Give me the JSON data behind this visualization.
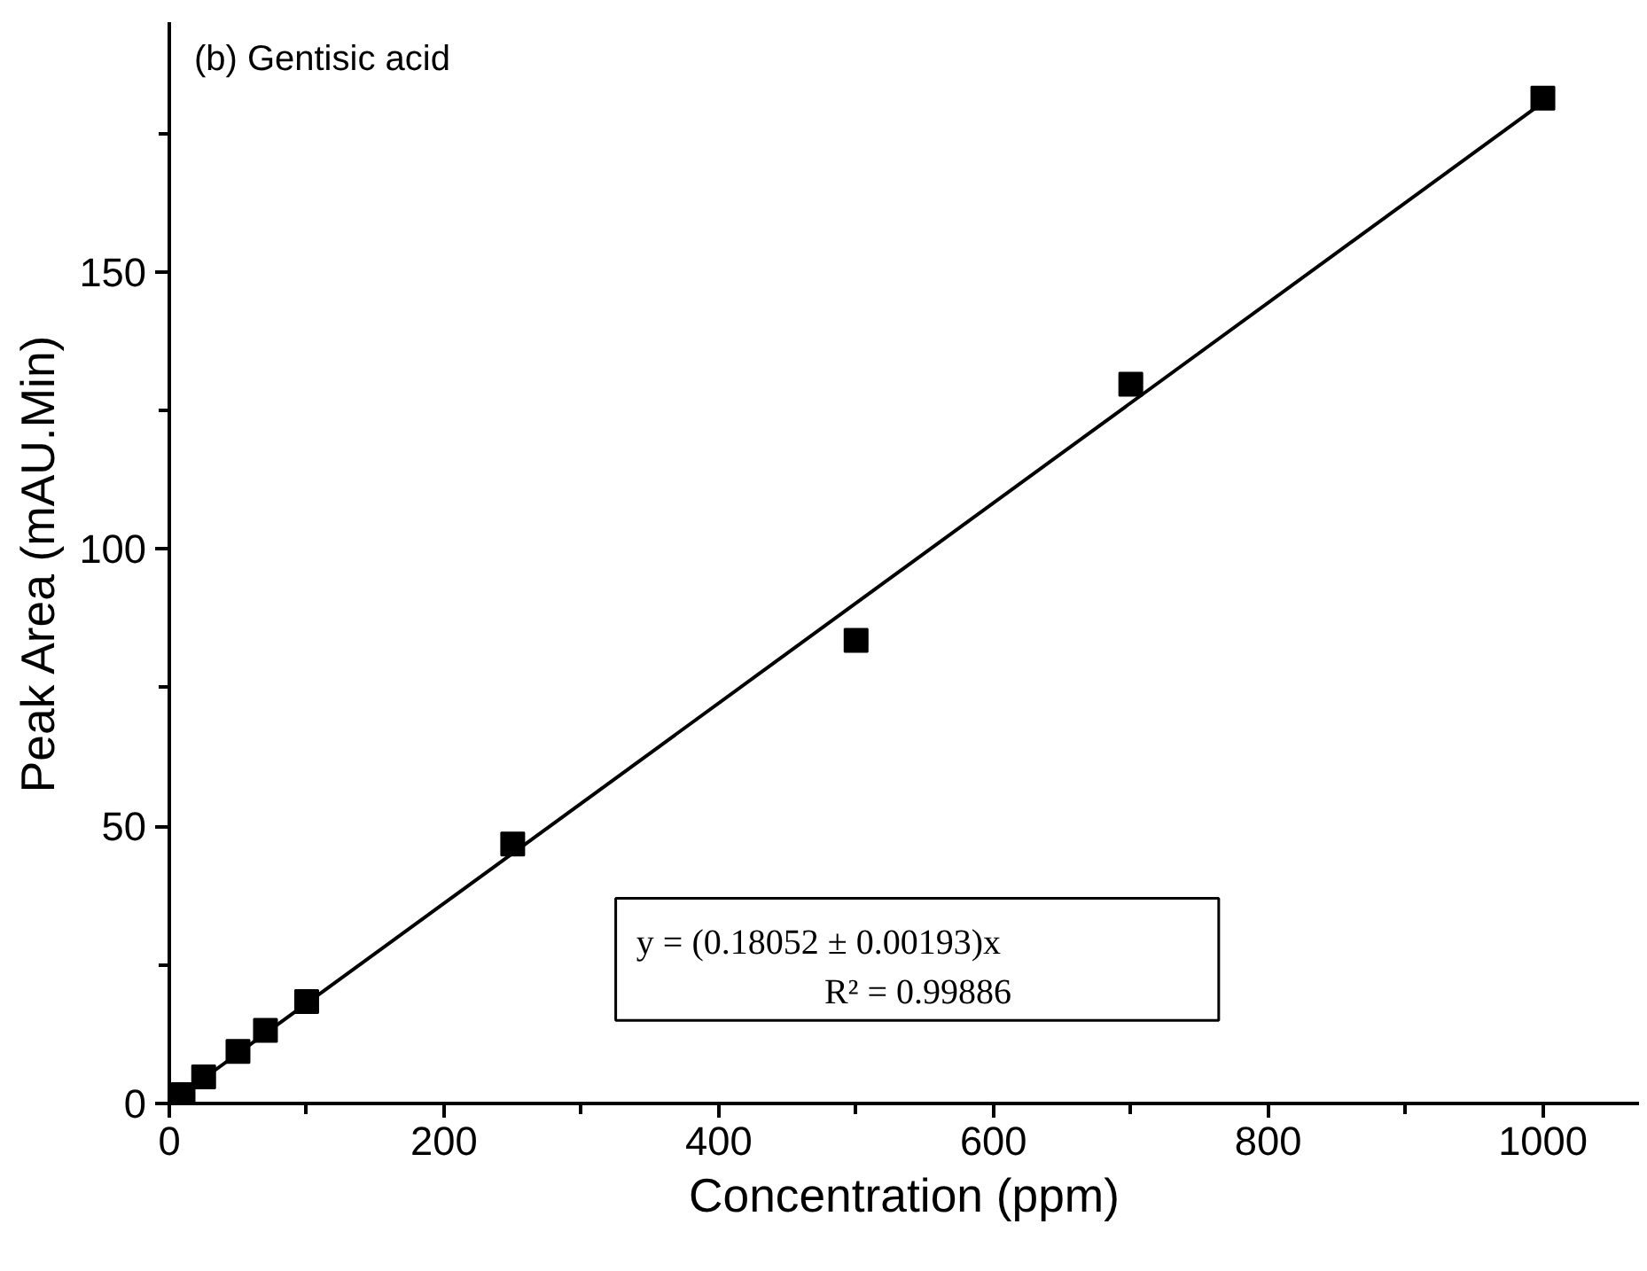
{
  "chart_data": {
    "type": "scatter",
    "title": "(b) Gentisic acid",
    "xlabel": "Concentration (ppm)",
    "ylabel": "Peak Area (mAU.Min)",
    "x": [
      10,
      25,
      50,
      70,
      100,
      250,
      500,
      700,
      1000
    ],
    "series": [
      {
        "color": "#000000",
        "marker": "square",
        "values": [
          1.6,
          4.8,
          9.4,
          13.2,
          18.4,
          46.8,
          83.5,
          129.7,
          181.3
        ]
      },
      {
        "type": "line",
        "color": "#000000",
        "x": [
          0,
          1000
        ],
        "values": [
          0,
          180.5
        ]
      }
    ],
    "annotations": [
      "y = (0.18052  ± 0.00193)x",
      "R² = 0.99886"
    ],
    "xlim": [
      0,
      1070
    ],
    "ylim": [
      0,
      195
    ],
    "xticks": [
      0,
      {
        "value": 100,
        "label": null
      },
      200,
      {
        "value": 300,
        "label": null
      },
      400,
      {
        "value": 500,
        "label": null
      },
      600,
      {
        "value": 700,
        "label": null
      },
      800,
      {
        "value": 900,
        "label": null
      },
      1000
    ],
    "yticks": [
      0,
      {
        "value": 25,
        "label": null
      },
      50,
      {
        "value": 75,
        "label": null
      },
      100,
      {
        "value": 125,
        "label": null
      },
      150,
      {
        "value": 175,
        "label": null
      }
    ],
    "grid": false
  }
}
